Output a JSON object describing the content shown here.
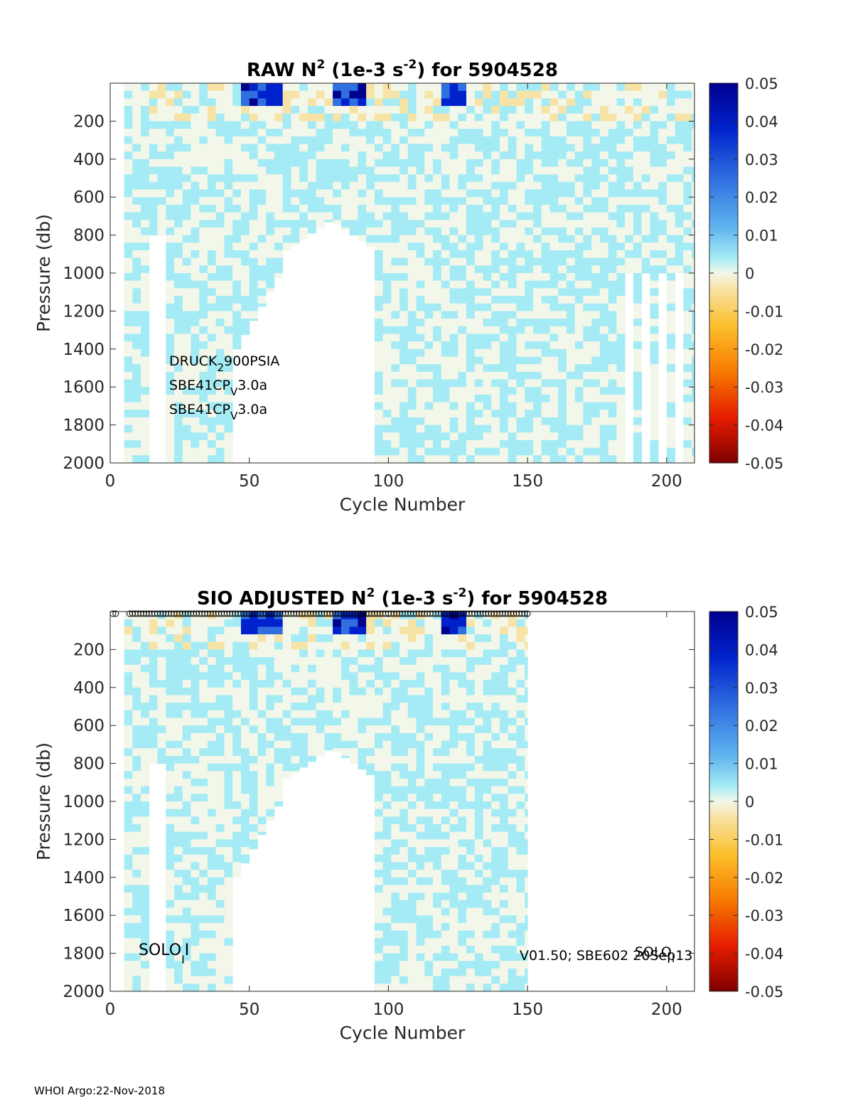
{
  "chart_data": [
    {
      "type": "heatmap",
      "title_prefix": "RAW N",
      "title_sup": "2",
      "title_mid": " (1e-3 s",
      "title_sup2": "-2",
      "title_suffix": ") for 5904528",
      "xlabel": "Cycle Number",
      "ylabel": "Pressure (db)",
      "xlim": [
        0,
        210
      ],
      "ylim": [
        2000,
        0
      ],
      "x_ticks": [
        "0",
        "50",
        "100",
        "150",
        "200"
      ],
      "y_ticks": [
        "200",
        "400",
        "600",
        "800",
        "1000",
        "1200",
        "1400",
        "1600",
        "1800",
        "2000"
      ],
      "colorbar": {
        "range": [
          -0.05,
          0.05
        ],
        "ticks": [
          "0.05",
          "0.04",
          "0.03",
          "0.02",
          "0.01",
          "0",
          "-0.01",
          "-0.02",
          "-0.03",
          "-0.04",
          "-0.05"
        ]
      },
      "cycle_range": [
        5,
        210
      ],
      "annotations": [
        {
          "base": "DRUCK",
          "sub": "2",
          "rest": "900PSIA"
        },
        {
          "base": "SBE41CP",
          "sub": "V",
          "rest": "3.0a"
        },
        {
          "base": "SBE41CP",
          "sub": "V",
          "rest": "3.0a"
        }
      ]
    },
    {
      "type": "heatmap",
      "title_prefix": "SIO  ADJUSTED N",
      "title_sup": "2",
      "title_mid": " (1e-3 s",
      "title_sup2": "-2",
      "title_suffix": ") for 5904528",
      "xlabel": "Cycle Number",
      "ylabel": "Pressure (db)",
      "xlim": [
        0,
        210
      ],
      "ylim": [
        2000,
        0
      ],
      "x_ticks": [
        "0",
        "50",
        "100",
        "150",
        "200"
      ],
      "y_ticks": [
        "200",
        "400",
        "600",
        "800",
        "1000",
        "1200",
        "1400",
        "1600",
        "1800",
        "2000"
      ],
      "colorbar": {
        "range": [
          -0.05,
          0.05
        ],
        "ticks": [
          "0.05",
          "0.04",
          "0.03",
          "0.02",
          "0.01",
          "0",
          "-0.01",
          "-0.02",
          "-0.03",
          "-0.04",
          "-0.05"
        ]
      },
      "cycle_range": [
        5,
        150
      ],
      "qc_marker_cycles": [
        1,
        150
      ],
      "annotations": [
        {
          "base": "SOLO",
          "sub": "I",
          "rest": "I"
        },
        {
          "base": "V01.50; SBE602 20Sep13",
          "sub": "",
          "rest": ""
        },
        {
          "base": "SOLO",
          "sub": "I",
          "rest": ""
        }
      ]
    }
  ],
  "footer": "WHOI Argo:22-Nov-2018"
}
